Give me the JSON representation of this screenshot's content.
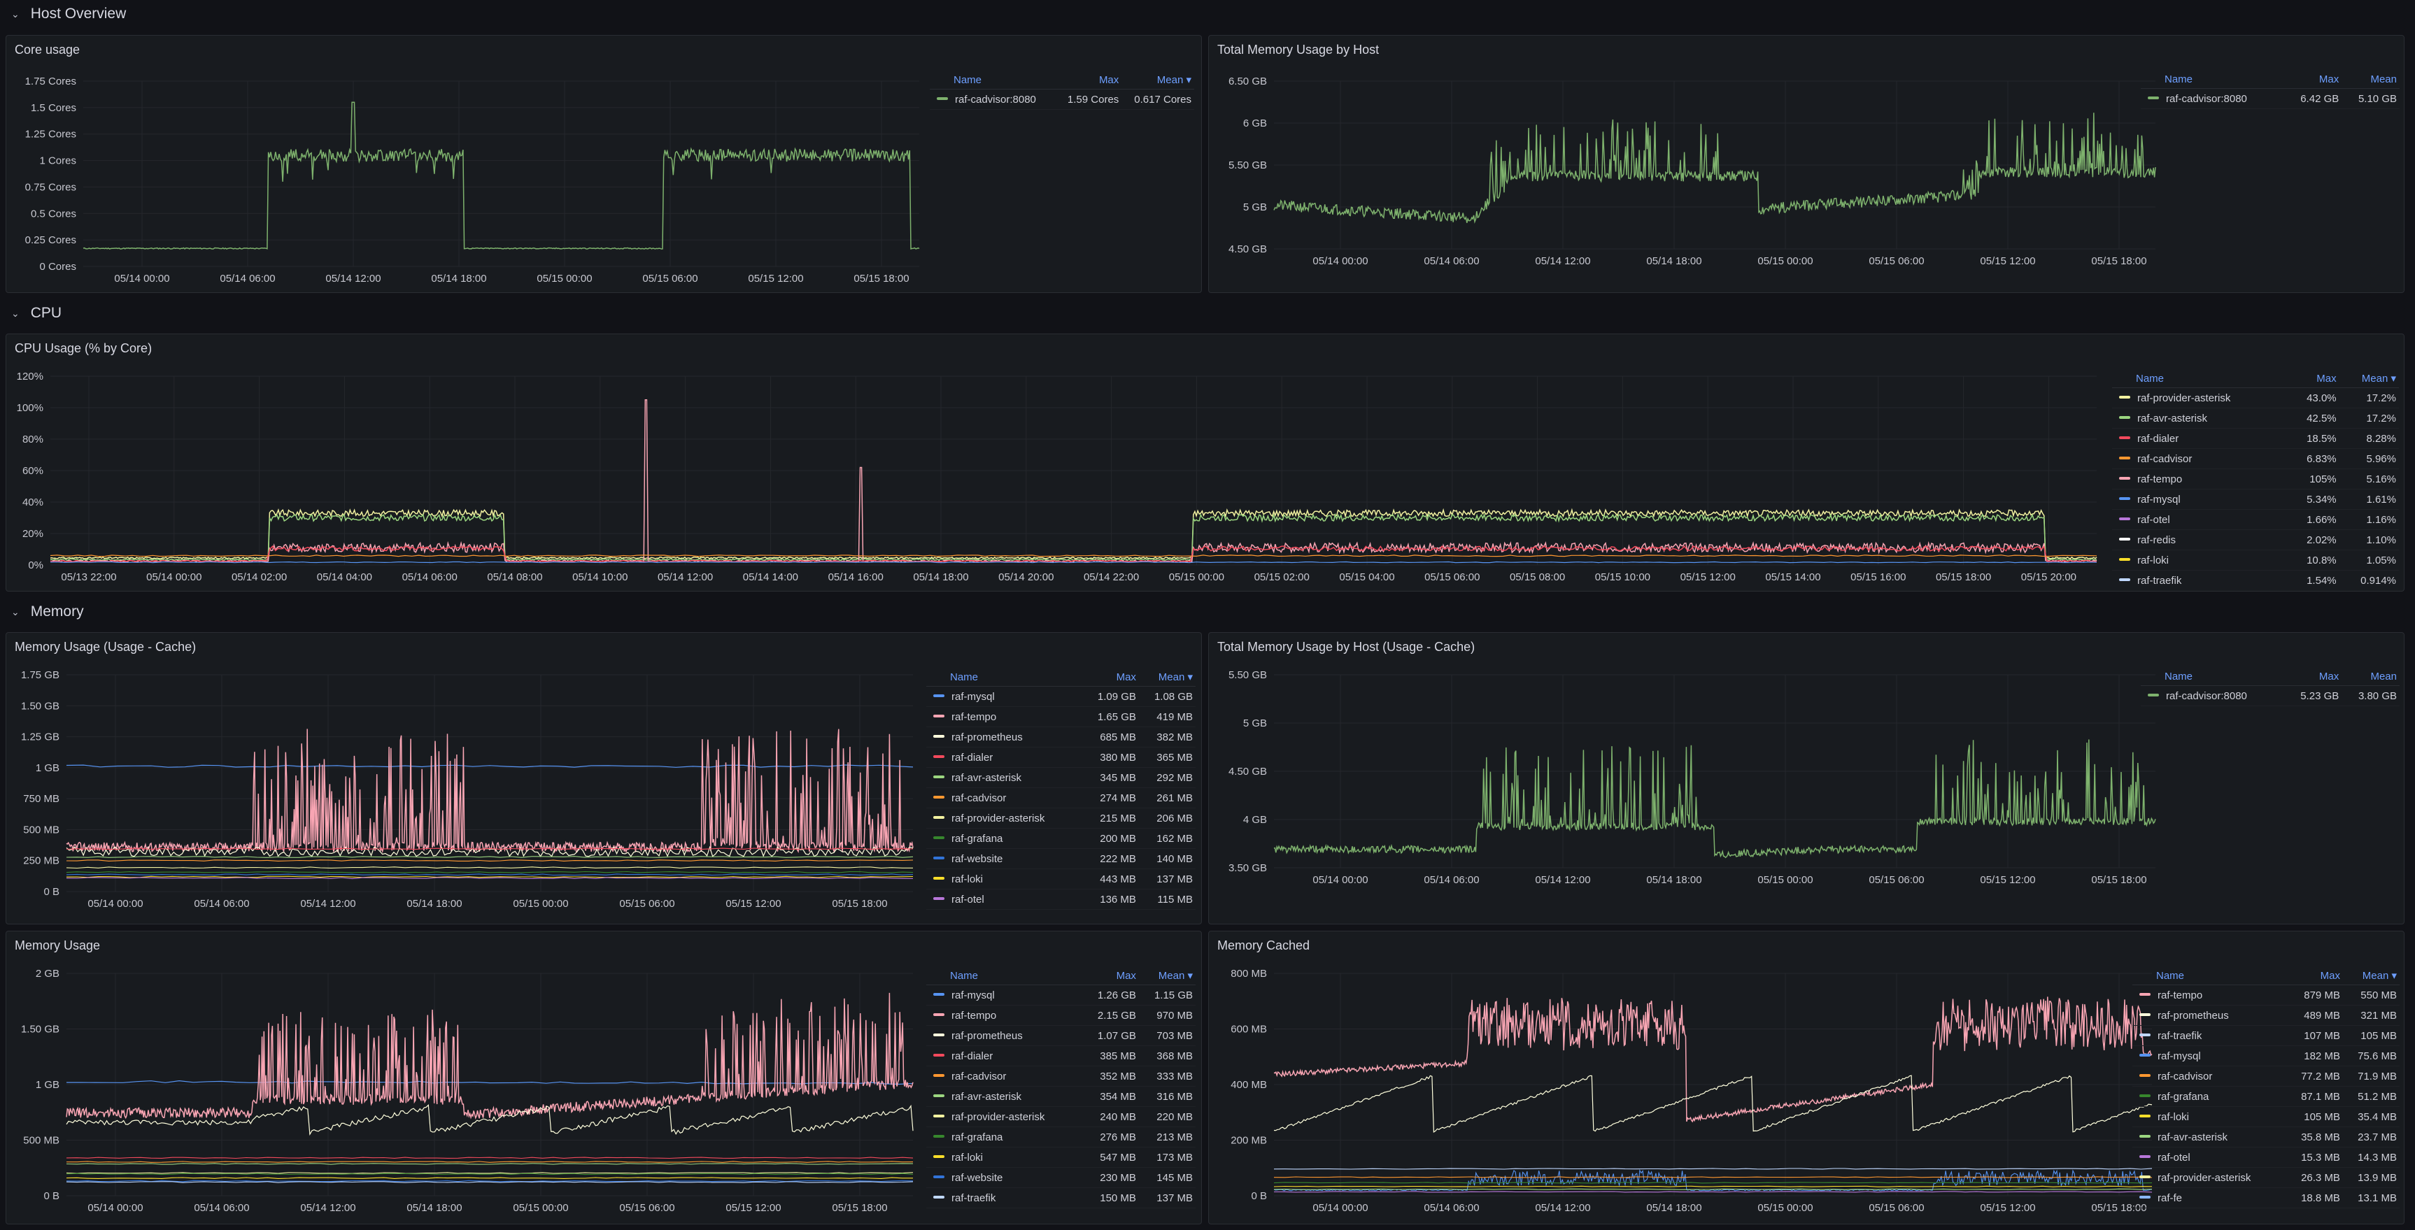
{
  "rows": {
    "host_overview": "Host Overview",
    "cpu": "CPU",
    "memory": "Memory"
  },
  "legend_headers": {
    "name": "Name",
    "max": "Max",
    "mean": "Mean",
    "mean_sorted": "Mean ▾"
  },
  "panels": {
    "core_usage": {
      "title": "Core usage",
      "y_ticks": [
        "1.75 Cores",
        "1.5 Cores",
        "1.25 Cores",
        "1 Cores",
        "0.75 Cores",
        "0.5 Cores",
        "0.25 Cores",
        "0 Cores"
      ],
      "x_ticks": [
        "05/14 00:00",
        "05/14 06:00",
        "05/14 12:00",
        "05/14 18:00",
        "05/15 00:00",
        "05/15 06:00",
        "05/15 12:00",
        "05/15 18:00"
      ],
      "legend": [
        {
          "name": "raf-cadvisor:8080",
          "max": "1.59 Cores",
          "mean": "0.617 Cores",
          "color": "#7eb26d"
        }
      ]
    },
    "total_mem_host": {
      "title": "Total Memory Usage by Host",
      "y_ticks": [
        "6.50 GB",
        "6 GB",
        "5.50 GB",
        "5 GB",
        "4.50 GB"
      ],
      "x_ticks": [
        "05/14 00:00",
        "05/14 06:00",
        "05/14 12:00",
        "05/14 18:00",
        "05/15 00:00",
        "05/15 06:00",
        "05/15 12:00",
        "05/15 18:00"
      ],
      "legend": [
        {
          "name": "raf-cadvisor:8080",
          "max": "6.42 GB",
          "mean": "5.10 GB",
          "color": "#7eb26d"
        }
      ]
    },
    "cpu_usage": {
      "title": "CPU Usage (% by Core)",
      "y_ticks": [
        "120%",
        "100%",
        "80%",
        "60%",
        "40%",
        "20%",
        "0%"
      ],
      "x_ticks": [
        "05/13 22:00",
        "05/14 00:00",
        "05/14 02:00",
        "05/14 04:00",
        "05/14 06:00",
        "05/14 08:00",
        "05/14 10:00",
        "05/14 12:00",
        "05/14 14:00",
        "05/14 16:00",
        "05/14 18:00",
        "05/14 20:00",
        "05/14 22:00",
        "05/15 00:00",
        "05/15 02:00",
        "05/15 04:00",
        "05/15 06:00",
        "05/15 08:00",
        "05/15 10:00",
        "05/15 12:00",
        "05/15 14:00",
        "05/15 16:00",
        "05/15 18:00",
        "05/15 20:00"
      ],
      "legend": [
        {
          "name": "raf-provider-asterisk",
          "max": "43.0%",
          "mean": "17.2%",
          "color": "#f2f2a0"
        },
        {
          "name": "raf-avr-asterisk",
          "max": "42.5%",
          "mean": "17.2%",
          "color": "#9bd680"
        },
        {
          "name": "raf-dialer",
          "max": "18.5%",
          "mean": "8.28%",
          "color": "#f2495c"
        },
        {
          "name": "raf-cadvisor",
          "max": "6.83%",
          "mean": "5.96%",
          "color": "#ff9830"
        },
        {
          "name": "raf-tempo",
          "max": "105%",
          "mean": "5.16%",
          "color": "#f8a5b3"
        },
        {
          "name": "raf-mysql",
          "max": "5.34%",
          "mean": "1.61%",
          "color": "#5794f2"
        },
        {
          "name": "raf-otel",
          "max": "1.66%",
          "mean": "1.16%",
          "color": "#b877d9"
        },
        {
          "name": "raf-redis",
          "max": "2.02%",
          "mean": "1.10%",
          "color": "#ffffff"
        },
        {
          "name": "raf-loki",
          "max": "10.8%",
          "mean": "1.05%",
          "color": "#fade2a"
        },
        {
          "name": "raf-traefik",
          "max": "1.54%",
          "mean": "0.914%",
          "color": "#c0d8ff"
        }
      ]
    },
    "mem_usage_cache": {
      "title": "Memory Usage (Usage - Cache)",
      "y_ticks": [
        "1.75 GB",
        "1.50 GB",
        "1.25 GB",
        "1 GB",
        "750 MB",
        "500 MB",
        "250 MB",
        "0 B"
      ],
      "x_ticks": [
        "05/14 00:00",
        "05/14 06:00",
        "05/14 12:00",
        "05/14 18:00",
        "05/15 00:00",
        "05/15 06:00",
        "05/15 12:00",
        "05/15 18:00"
      ],
      "legend": [
        {
          "name": "raf-mysql",
          "max": "1.09 GB",
          "mean": "1.08 GB",
          "color": "#5794f2"
        },
        {
          "name": "raf-tempo",
          "max": "1.65 GB",
          "mean": "419 MB",
          "color": "#f8a5b3"
        },
        {
          "name": "raf-prometheus",
          "max": "685 MB",
          "mean": "382 MB",
          "color": "#ffffdd"
        },
        {
          "name": "raf-dialer",
          "max": "380 MB",
          "mean": "365 MB",
          "color": "#f2495c"
        },
        {
          "name": "raf-avr-asterisk",
          "max": "345 MB",
          "mean": "292 MB",
          "color": "#9bd680"
        },
        {
          "name": "raf-cadvisor",
          "max": "274 MB",
          "mean": "261 MB",
          "color": "#ff9830"
        },
        {
          "name": "raf-provider-asterisk",
          "max": "215 MB",
          "mean": "206 MB",
          "color": "#f2f2a0"
        },
        {
          "name": "raf-grafana",
          "max": "200 MB",
          "mean": "162 MB",
          "color": "#37872d"
        },
        {
          "name": "raf-website",
          "max": "222 MB",
          "mean": "140 MB",
          "color": "#3274d9"
        },
        {
          "name": "raf-loki",
          "max": "443 MB",
          "mean": "137 MB",
          "color": "#fade2a"
        },
        {
          "name": "raf-otel",
          "max": "136 MB",
          "mean": "115 MB",
          "color": "#b877d9"
        }
      ]
    },
    "total_mem_host_cache": {
      "title": "Total Memory Usage by Host (Usage - Cache)",
      "y_ticks": [
        "5.50 GB",
        "5 GB",
        "4.50 GB",
        "4 GB",
        "3.50 GB"
      ],
      "x_ticks": [
        "05/14 00:00",
        "05/14 06:00",
        "05/14 12:00",
        "05/14 18:00",
        "05/15 00:00",
        "05/15 06:00",
        "05/15 12:00",
        "05/15 18:00"
      ],
      "legend": [
        {
          "name": "raf-cadvisor:8080",
          "max": "5.23 GB",
          "mean": "3.80 GB",
          "color": "#7eb26d"
        }
      ]
    },
    "mem_usage": {
      "title": "Memory Usage",
      "y_ticks": [
        "2 GB",
        "1.50 GB",
        "1 GB",
        "500 MB",
        "0 B"
      ],
      "x_ticks": [
        "05/14 00:00",
        "05/14 06:00",
        "05/14 12:00",
        "05/14 18:00",
        "05/15 00:00",
        "05/15 06:00",
        "05/15 12:00",
        "05/15 18:00"
      ],
      "legend": [
        {
          "name": "raf-mysql",
          "max": "1.26 GB",
          "mean": "1.15 GB",
          "color": "#5794f2"
        },
        {
          "name": "raf-tempo",
          "max": "2.15 GB",
          "mean": "970 MB",
          "color": "#f8a5b3"
        },
        {
          "name": "raf-prometheus",
          "max": "1.07 GB",
          "mean": "703 MB",
          "color": "#ffffdd"
        },
        {
          "name": "raf-dialer",
          "max": "385 MB",
          "mean": "368 MB",
          "color": "#f2495c"
        },
        {
          "name": "raf-cadvisor",
          "max": "352 MB",
          "mean": "333 MB",
          "color": "#ff9830"
        },
        {
          "name": "raf-avr-asterisk",
          "max": "354 MB",
          "mean": "316 MB",
          "color": "#9bd680"
        },
        {
          "name": "raf-provider-asterisk",
          "max": "240 MB",
          "mean": "220 MB",
          "color": "#f2f2a0"
        },
        {
          "name": "raf-grafana",
          "max": "276 MB",
          "mean": "213 MB",
          "color": "#37872d"
        },
        {
          "name": "raf-loki",
          "max": "547 MB",
          "mean": "173 MB",
          "color": "#fade2a"
        },
        {
          "name": "raf-website",
          "max": "230 MB",
          "mean": "145 MB",
          "color": "#3274d9"
        },
        {
          "name": "raf-traefik",
          "max": "150 MB",
          "mean": "137 MB",
          "color": "#c0d8ff"
        }
      ]
    },
    "mem_cached": {
      "title": "Memory Cached",
      "y_ticks": [
        "800 MB",
        "600 MB",
        "400 MB",
        "200 MB",
        "0 B"
      ],
      "x_ticks": [
        "05/14 00:00",
        "05/14 06:00",
        "05/14 12:00",
        "05/14 18:00",
        "05/15 00:00",
        "05/15 06:00",
        "05/15 12:00",
        "05/15 18:00"
      ],
      "legend": [
        {
          "name": "raf-tempo",
          "max": "879 MB",
          "mean": "550 MB",
          "color": "#f8a5b3"
        },
        {
          "name": "raf-prometheus",
          "max": "489 MB",
          "mean": "321 MB",
          "color": "#ffffdd"
        },
        {
          "name": "raf-traefik",
          "max": "107 MB",
          "mean": "105 MB",
          "color": "#c0d8ff"
        },
        {
          "name": "raf-mysql",
          "max": "182 MB",
          "mean": "75.6 MB",
          "color": "#5794f2"
        },
        {
          "name": "raf-cadvisor",
          "max": "77.2 MB",
          "mean": "71.9 MB",
          "color": "#ff9830"
        },
        {
          "name": "raf-grafana",
          "max": "87.1 MB",
          "mean": "51.2 MB",
          "color": "#37872d"
        },
        {
          "name": "raf-loki",
          "max": "105 MB",
          "mean": "35.4 MB",
          "color": "#fade2a"
        },
        {
          "name": "raf-avr-asterisk",
          "max": "35.8 MB",
          "mean": "23.7 MB",
          "color": "#9bd680"
        },
        {
          "name": "raf-otel",
          "max": "15.3 MB",
          "mean": "14.3 MB",
          "color": "#b877d9"
        },
        {
          "name": "raf-provider-asterisk",
          "max": "26.3 MB",
          "mean": "13.9 MB",
          "color": "#f2f2a0"
        },
        {
          "name": "raf-fe",
          "max": "18.8 MB",
          "mean": "13.1 MB",
          "color": "#8ab8ff"
        }
      ]
    }
  }
}
